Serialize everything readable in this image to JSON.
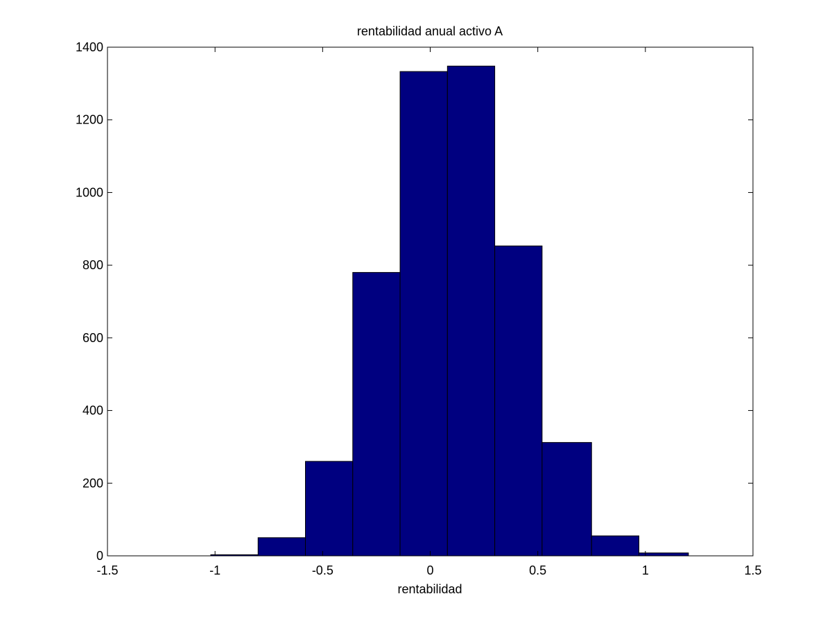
{
  "chart_data": {
    "type": "bar",
    "title": "rentabilidad anual activo A",
    "xlabel": "rentabilidad",
    "ylabel": "",
    "xlim": [
      -1.5,
      1.5
    ],
    "ylim": [
      0,
      1400
    ],
    "xticks": [
      -1.5,
      -1,
      -0.5,
      0,
      0.5,
      1,
      1.5
    ],
    "xtick_labels": [
      "-1.5",
      "-1",
      "-0.5",
      "0",
      "0.5",
      "1",
      "1.5"
    ],
    "yticks": [
      0,
      200,
      400,
      600,
      800,
      1000,
      1200,
      1400
    ],
    "ytick_labels": [
      "0",
      "200",
      "400",
      "600",
      "800",
      "1000",
      "1200",
      "1400"
    ],
    "grid": false,
    "bins": [
      {
        "x0": -1.02,
        "x1": -0.8,
        "count": 3
      },
      {
        "x0": -0.8,
        "x1": -0.58,
        "count": 50
      },
      {
        "x0": -0.58,
        "x1": -0.36,
        "count": 260
      },
      {
        "x0": -0.36,
        "x1": -0.14,
        "count": 780
      },
      {
        "x0": -0.14,
        "x1": 0.08,
        "count": 1333
      },
      {
        "x0": 0.08,
        "x1": 0.3,
        "count": 1348
      },
      {
        "x0": 0.3,
        "x1": 0.52,
        "count": 853
      },
      {
        "x0": 0.52,
        "x1": 0.75,
        "count": 312
      },
      {
        "x0": 0.75,
        "x1": 0.97,
        "count": 55
      },
      {
        "x0": 0.97,
        "x1": 1.2,
        "count": 8
      }
    ],
    "colors": {
      "bar_fill": "#000080",
      "bar_edge": "#000000",
      "axes": "#000000",
      "background": "#ffffff"
    }
  }
}
